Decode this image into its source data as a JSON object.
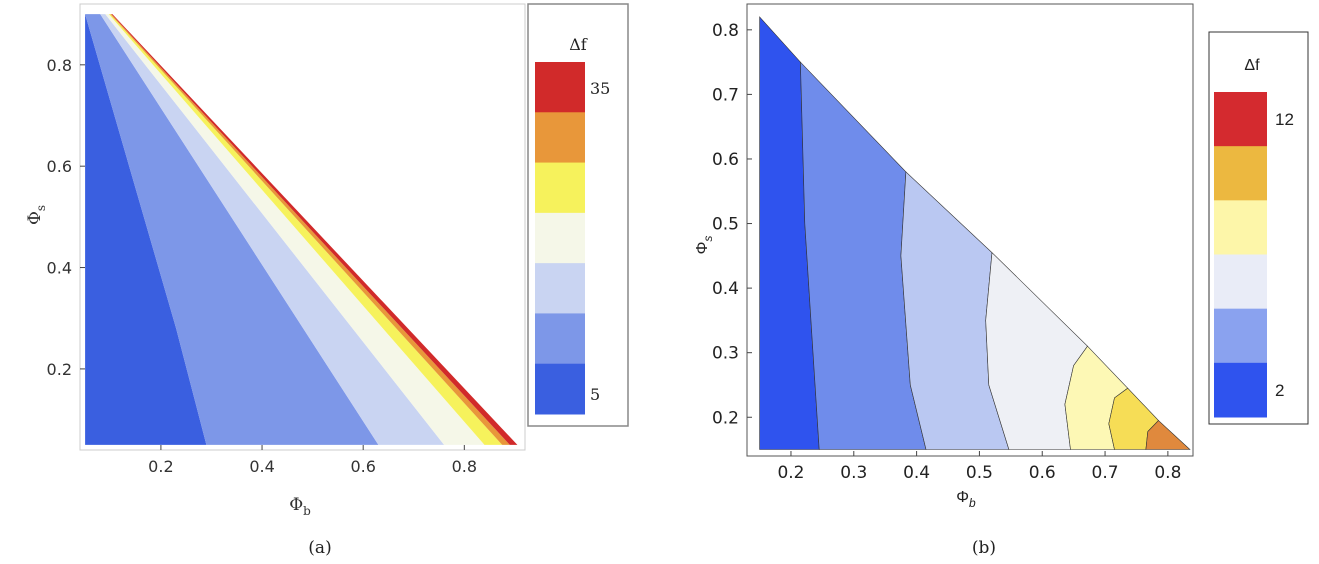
{
  "chart_data": [
    {
      "type": "contour",
      "panel_label": "(a)",
      "xlabel": "Φ",
      "xlabel_sub": "b",
      "ylabel": "Φ",
      "ylabel_sub": "s",
      "xlim": [
        0.04,
        0.92
      ],
      "ylim": [
        0.04,
        0.92
      ],
      "xticks": [
        "0.2",
        "0.4",
        "0.6",
        "0.8"
      ],
      "yticks": [
        "0.2",
        "0.4",
        "0.6",
        "0.8"
      ],
      "xtick_values": [
        0.2,
        0.4,
        0.6,
        0.8
      ],
      "ytick_values": [
        0.2,
        0.4,
        0.6,
        0.8
      ],
      "legend_title": "Δf",
      "legend_labels": [
        "35",
        "5"
      ],
      "legend_colors": [
        "#d12a2a",
        "#e8973a",
        "#f6f25c",
        "#f5f7e8",
        "#c9d4f2",
        "#7d97e8",
        "#3a5fe0"
      ],
      "regions": [
        {
          "color": "#3a5fe0",
          "polygon": [
            [
              0.05,
              0.05
            ],
            [
              0.29,
              0.05
            ],
            [
              0.23,
              0.28
            ],
            [
              0.05,
              0.9
            ]
          ]
        },
        {
          "color": "#7d97e8",
          "polygon": [
            [
              0.29,
              0.05
            ],
            [
              0.63,
              0.05
            ],
            [
              0.08,
              0.9
            ],
            [
              0.05,
              0.9
            ],
            [
              0.23,
              0.28
            ]
          ]
        },
        {
          "color": "#c9d4f2",
          "polygon": [
            [
              0.63,
              0.05
            ],
            [
              0.76,
              0.05
            ],
            [
              0.09,
              0.9
            ],
            [
              0.08,
              0.9
            ]
          ]
        },
        {
          "color": "#f5f7e8",
          "polygon": [
            [
              0.76,
              0.05
            ],
            [
              0.84,
              0.05
            ],
            [
              0.097,
              0.9
            ],
            [
              0.09,
              0.9
            ]
          ]
        },
        {
          "color": "#f6f25c",
          "polygon": [
            [
              0.84,
              0.05
            ],
            [
              0.875,
              0.05
            ],
            [
              0.1,
              0.9
            ],
            [
              0.097,
              0.9
            ]
          ]
        },
        {
          "color": "#e8973a",
          "polygon": [
            [
              0.875,
              0.05
            ],
            [
              0.89,
              0.05
            ],
            [
              0.102,
              0.9
            ],
            [
              0.1,
              0.9
            ]
          ]
        },
        {
          "color": "#d12a2a",
          "polygon": [
            [
              0.89,
              0.05
            ],
            [
              0.905,
              0.05
            ],
            [
              0.104,
              0.9
            ],
            [
              0.102,
              0.9
            ]
          ]
        }
      ]
    },
    {
      "type": "contour",
      "panel_label": "(b)",
      "xlabel": "Φ",
      "xlabel_sub": "b",
      "ylabel": "Φ",
      "ylabel_sub": "s",
      "xlim": [
        0.13,
        0.84
      ],
      "ylim": [
        0.14,
        0.84
      ],
      "xticks": [
        "0.2",
        "0.3",
        "0.4",
        "0.5",
        "0.6",
        "0.7",
        "0.8"
      ],
      "yticks": [
        "0.2",
        "0.3",
        "0.4",
        "0.5",
        "0.6",
        "0.7",
        "0.8"
      ],
      "xtick_values": [
        0.2,
        0.3,
        0.4,
        0.5,
        0.6,
        0.7,
        0.8
      ],
      "ytick_values": [
        0.2,
        0.3,
        0.4,
        0.5,
        0.6,
        0.7,
        0.8
      ],
      "legend_title": "Δf",
      "legend_labels": [
        "12",
        "2"
      ],
      "legend_colors": [
        "#d42a2f",
        "#ecb840",
        "#fdf6a9",
        "#e9ecf7",
        "#8aa2ef",
        "#2f53ee"
      ],
      "regions": [
        {
          "color": "#2f53ee",
          "polygon": [
            [
              0.15,
              0.15
            ],
            [
              0.245,
              0.15
            ],
            [
              0.235,
              0.3
            ],
            [
              0.222,
              0.5
            ],
            [
              0.215,
              0.75
            ],
            [
              0.15,
              0.82
            ]
          ]
        },
        {
          "color": "#6f8ceb",
          "polygon": [
            [
              0.245,
              0.15
            ],
            [
              0.415,
              0.15
            ],
            [
              0.39,
              0.25
            ],
            [
              0.375,
              0.45
            ],
            [
              0.383,
              0.58
            ],
            [
              0.215,
              0.75
            ],
            [
              0.222,
              0.5
            ],
            [
              0.235,
              0.3
            ]
          ]
        },
        {
          "color": "#bac8f2",
          "polygon": [
            [
              0.415,
              0.15
            ],
            [
              0.547,
              0.15
            ],
            [
              0.515,
              0.25
            ],
            [
              0.51,
              0.35
            ],
            [
              0.52,
              0.455
            ],
            [
              0.383,
              0.58
            ],
            [
              0.375,
              0.45
            ],
            [
              0.39,
              0.25
            ]
          ]
        },
        {
          "color": "#eef0f5",
          "polygon": [
            [
              0.547,
              0.15
            ],
            [
              0.645,
              0.15
            ],
            [
              0.636,
              0.22
            ],
            [
              0.65,
              0.28
            ],
            [
              0.672,
              0.31
            ],
            [
              0.52,
              0.455
            ],
            [
              0.51,
              0.35
            ],
            [
              0.515,
              0.25
            ]
          ]
        },
        {
          "color": "#fdf8b5",
          "polygon": [
            [
              0.645,
              0.15
            ],
            [
              0.715,
              0.15
            ],
            [
              0.706,
              0.19
            ],
            [
              0.715,
              0.23
            ],
            [
              0.736,
              0.245
            ],
            [
              0.672,
              0.31
            ],
            [
              0.65,
              0.28
            ],
            [
              0.636,
              0.22
            ]
          ]
        },
        {
          "color": "#f6dd56",
          "polygon": [
            [
              0.715,
              0.15
            ],
            [
              0.765,
              0.15
            ],
            [
              0.768,
              0.178
            ],
            [
              0.785,
              0.195
            ],
            [
              0.736,
              0.245
            ],
            [
              0.715,
              0.23
            ],
            [
              0.706,
              0.19
            ]
          ]
        },
        {
          "color": "#e0893d",
          "polygon": [
            [
              0.765,
              0.15
            ],
            [
              0.835,
              0.15
            ],
            [
              0.785,
              0.195
            ],
            [
              0.768,
              0.178
            ]
          ]
        }
      ]
    }
  ]
}
